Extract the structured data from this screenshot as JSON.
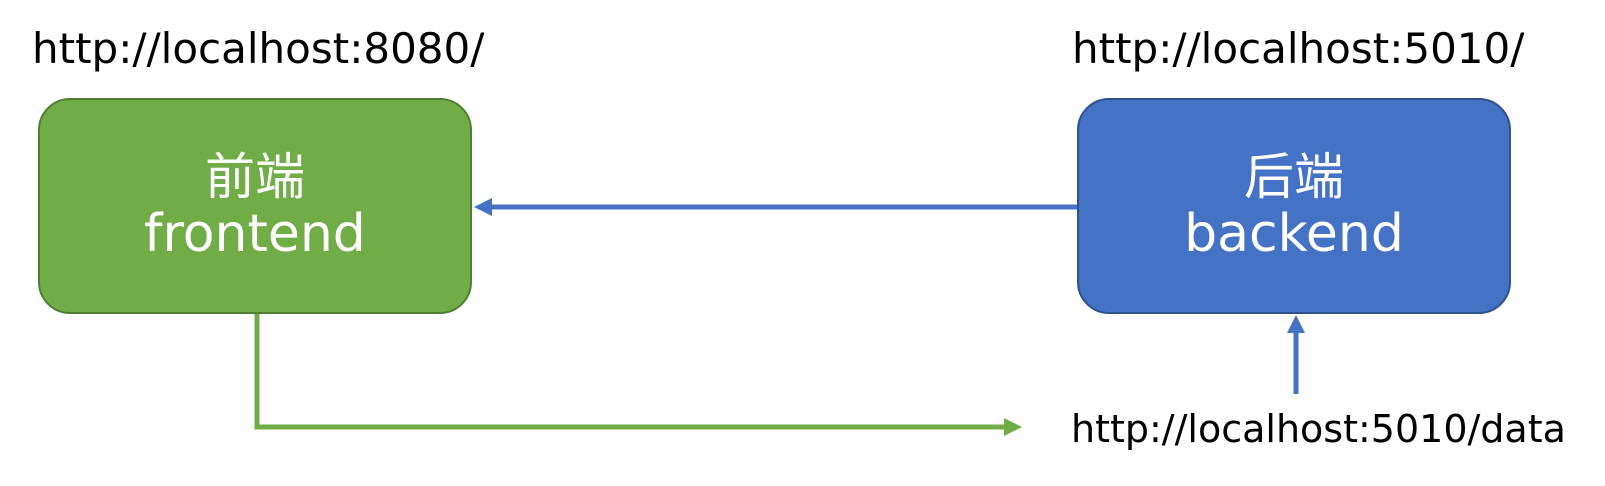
{
  "frontend": {
    "url": "http://localhost:8080/",
    "title_cn": "前端",
    "title_en": "frontend",
    "color": "#70ad47"
  },
  "backend": {
    "url": "http://localhost:5010/",
    "title_cn": "后端",
    "title_en": "backend",
    "color": "#4472c4"
  },
  "data_endpoint": {
    "url": "http://localhost:5010/data"
  },
  "edges": [
    {
      "from": "backend",
      "to": "frontend",
      "color": "#4472c4"
    },
    {
      "from": "frontend",
      "to": "data_endpoint",
      "color": "#70ad47"
    },
    {
      "from": "data_endpoint",
      "to": "backend",
      "color": "#4472c4"
    }
  ]
}
